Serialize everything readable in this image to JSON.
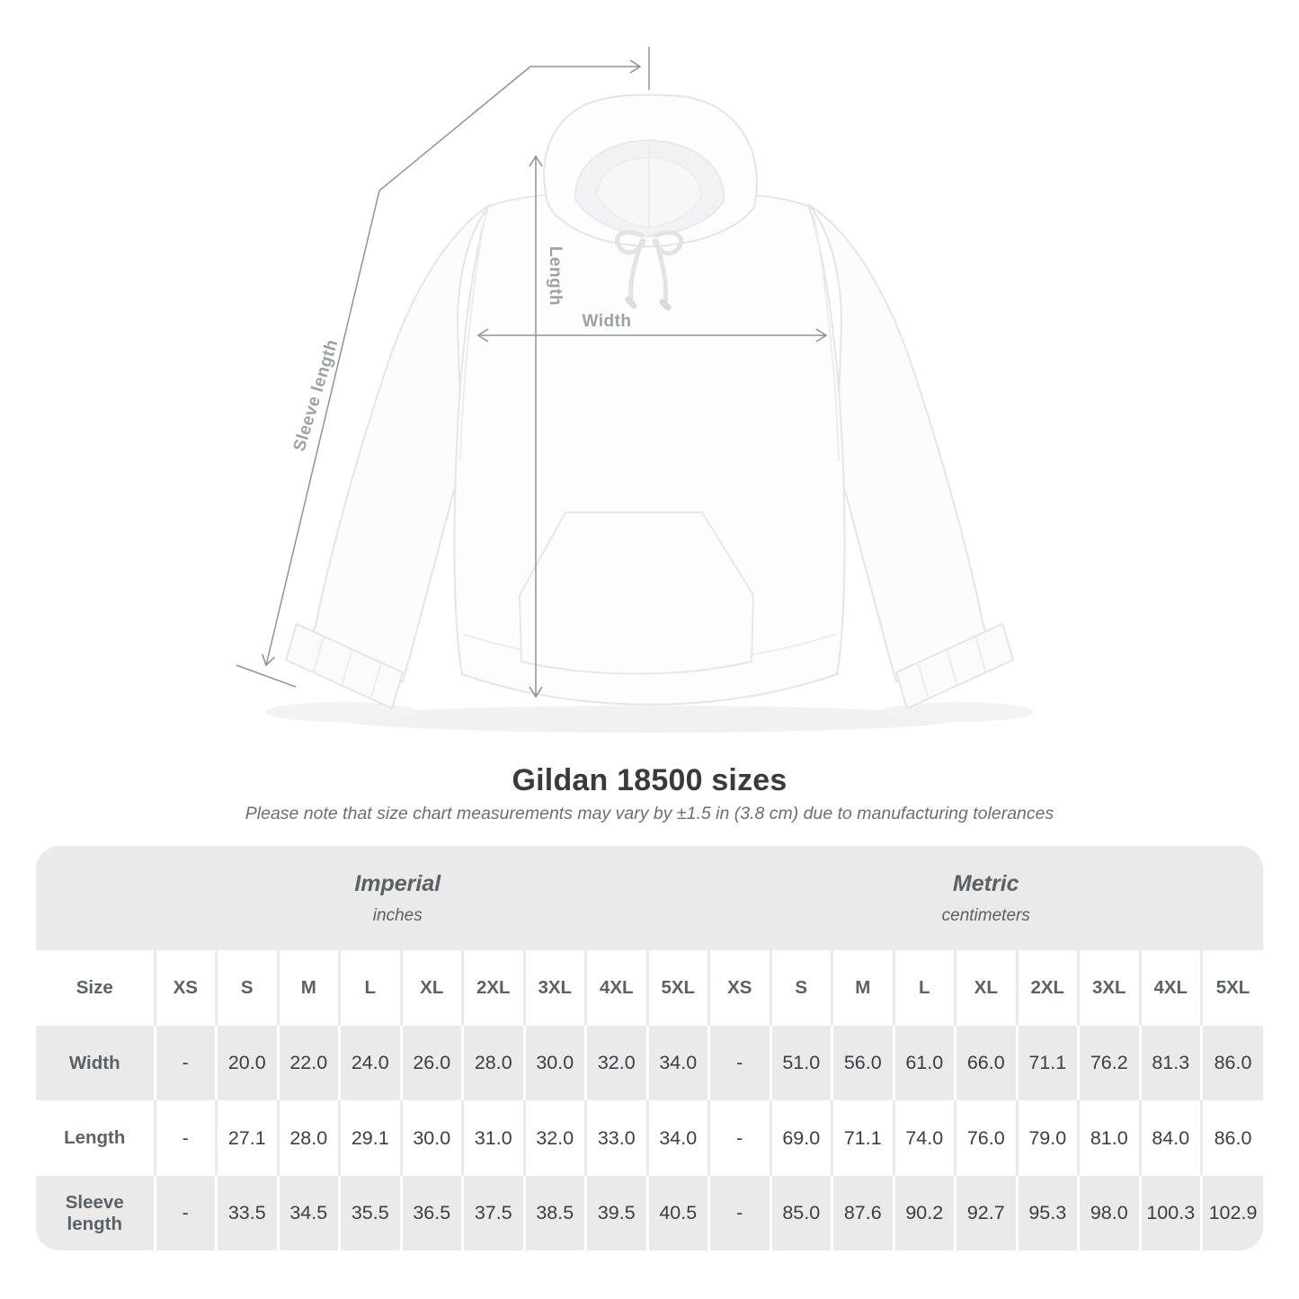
{
  "colors": {
    "page_background": "#ffffff",
    "table_band_gray": "#eaeaea",
    "header_text": "#5b6265",
    "number_text": "#3b3f42",
    "title_text": "#3a3a3c",
    "subtitle_text": "#6d6e70",
    "annotation_line": "#8f9396",
    "annotation_label": "#9ca1a5"
  },
  "diagram": {
    "alt": "white-hoodie-front-view",
    "labels": {
      "length": "Length",
      "width": "Width",
      "sleeve": "Sleeve length"
    }
  },
  "headline": {
    "title": "Gildan 18500 sizes",
    "note": "Please note that size chart measurements may vary by ±1.5 in (3.8 cm) due to manufacturing tolerances"
  },
  "chart_data": {
    "type": "table",
    "corner_label": "Size",
    "groups": [
      {
        "title": "Imperial",
        "unit": "inches"
      },
      {
        "title": "Metric",
        "unit": "centimeters"
      }
    ],
    "sizes": [
      "XS",
      "S",
      "M",
      "L",
      "XL",
      "2XL",
      "3XL",
      "4XL",
      "5XL"
    ],
    "rows": [
      {
        "label": "Width",
        "imperial": [
          "-",
          "20.0",
          "22.0",
          "24.0",
          "26.0",
          "28.0",
          "30.0",
          "32.0",
          "34.0"
        ],
        "metric": [
          "-",
          "51.0",
          "56.0",
          "61.0",
          "66.0",
          "71.1",
          "76.2",
          "81.3",
          "86.0"
        ]
      },
      {
        "label": "Length",
        "imperial": [
          "-",
          "27.1",
          "28.0",
          "29.1",
          "30.0",
          "31.0",
          "32.0",
          "33.0",
          "34.0"
        ],
        "metric": [
          "-",
          "69.0",
          "71.1",
          "74.0",
          "76.0",
          "79.0",
          "81.0",
          "84.0",
          "86.0"
        ]
      },
      {
        "label": "Sleeve length",
        "imperial": [
          "-",
          "33.5",
          "34.5",
          "35.5",
          "36.5",
          "37.5",
          "38.5",
          "39.5",
          "40.5"
        ],
        "metric": [
          "-",
          "85.0",
          "87.6",
          "90.2",
          "92.7",
          "95.3",
          "98.0",
          "100.3",
          "102.9"
        ]
      }
    ]
  }
}
